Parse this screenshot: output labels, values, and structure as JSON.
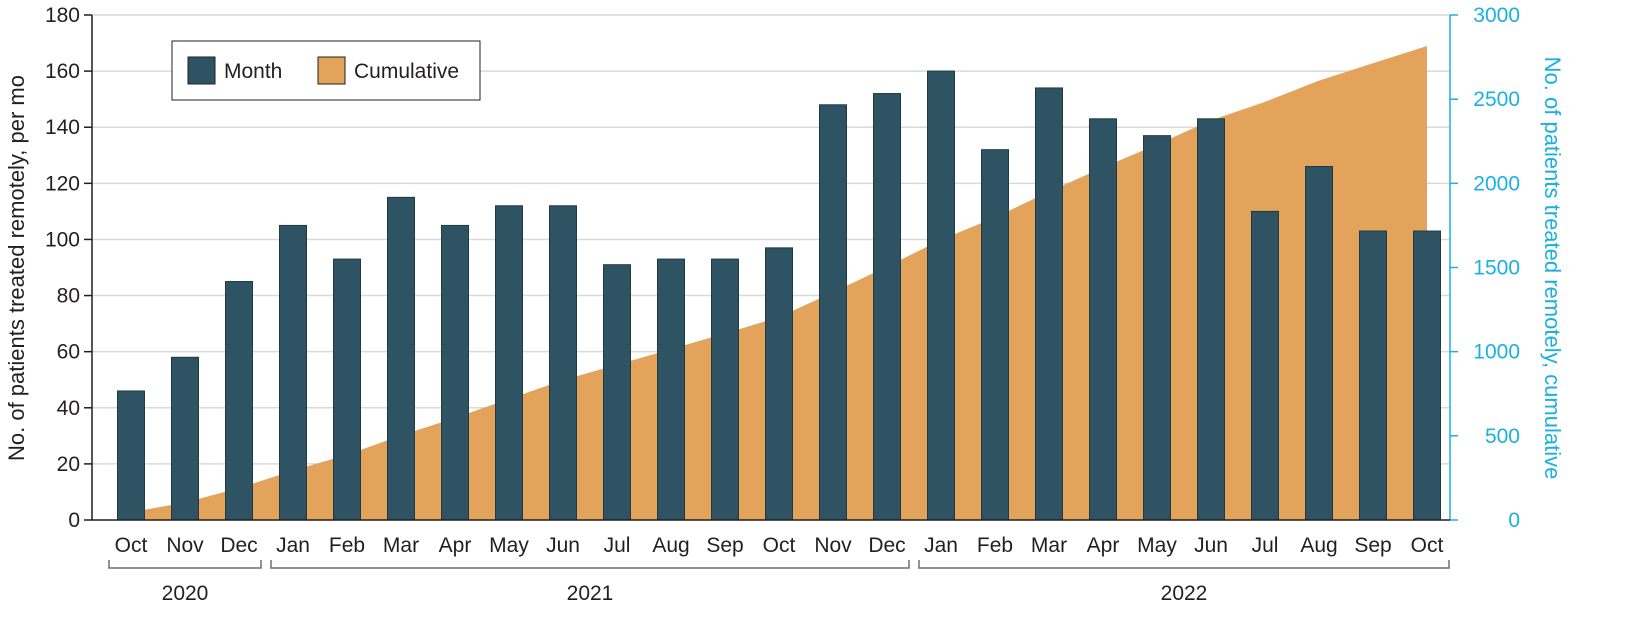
{
  "chart_data": {
    "type": "bar",
    "categories": [
      "Oct",
      "Nov",
      "Dec",
      "Jan",
      "Feb",
      "Mar",
      "Apr",
      "May",
      "Jun",
      "Jul",
      "Aug",
      "Sep",
      "Oct",
      "Nov",
      "Dec",
      "Jan",
      "Feb",
      "Mar",
      "Apr",
      "May",
      "Jun",
      "Jul",
      "Aug",
      "Sep",
      "Oct"
    ],
    "year_groups": [
      {
        "label": "2020",
        "start": 0,
        "end": 2
      },
      {
        "label": "2021",
        "start": 3,
        "end": 14
      },
      {
        "label": "2022",
        "start": 15,
        "end": 24
      }
    ],
    "series": [
      {
        "name": "Month",
        "type": "bar",
        "axis": "left",
        "color": "#2e5464",
        "values": [
          46,
          58,
          85,
          105,
          93,
          115,
          105,
          112,
          112,
          91,
          93,
          93,
          97,
          148,
          152,
          160,
          132,
          154,
          143,
          137,
          143,
          110,
          126,
          103,
          103
        ]
      },
      {
        "name": "Cumulative",
        "type": "area",
        "axis": "right",
        "color": "#e3a35a",
        "values": [
          46,
          104,
          189,
          294,
          387,
          502,
          607,
          719,
          831,
          922,
          1015,
          1108,
          1205,
          1353,
          1505,
          1665,
          1797,
          1951,
          2094,
          2231,
          2374,
          2484,
          2610,
          2713,
          2816
        ]
      }
    ],
    "ylabel": "No. of patients treated remotely, per mo",
    "y2label": "No. of patients treated remotely, cumulative",
    "ylim": [
      0,
      180
    ],
    "y2lim": [
      0,
      3000
    ],
    "yticks": [
      0,
      20,
      40,
      60,
      80,
      100,
      120,
      140,
      160,
      180
    ],
    "y2ticks": [
      0,
      500,
      1000,
      1500,
      2000,
      2500,
      3000
    ],
    "grid": true,
    "legend_position": "top-left"
  },
  "colors": {
    "bar": "#2e5464",
    "area": "#e3a35a",
    "right_axis": "#1ab0e0",
    "grid": "#d9d9d9",
    "axis": "#231f20"
  }
}
